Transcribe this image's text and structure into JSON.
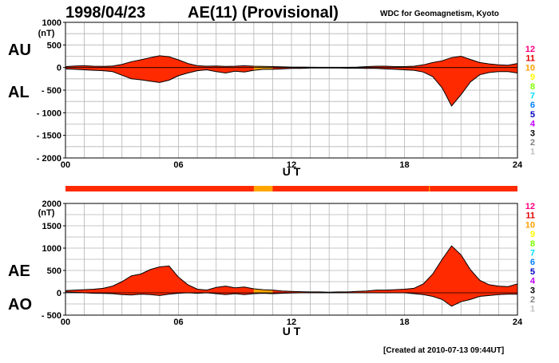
{
  "header": {
    "date": "1998/04/23",
    "title": "AE(11) (Provisional)",
    "source": "WDC for Geomagnetism, Kyoto"
  },
  "footer": {
    "created": "[Created at 2010-07-13 09:44UT]"
  },
  "colors": {
    "fill": "#ff2a00",
    "provisional": "#ffa500",
    "grid": "#b4b4b4",
    "axis": "#000000"
  },
  "station_count_scale": {
    "labels": [
      "12",
      "11",
      "10",
      "9",
      "8",
      "7",
      "6",
      "5",
      "4",
      "3",
      "2",
      "1"
    ],
    "colors": [
      "#ff0080",
      "#e00000",
      "#ffa000",
      "#ffff00",
      "#80ff00",
      "#00e0ff",
      "#0080ff",
      "#0000c0",
      "#c000ff",
      "#000000",
      "#808080",
      "#c0c0c0"
    ]
  },
  "chart_data": [
    {
      "type": "area",
      "panel": "AU / AL",
      "series": [
        {
          "name": "AU"
        },
        {
          "name": "AL"
        }
      ],
      "unit": "(nT)",
      "xlabel": "U T",
      "xlim": [
        0,
        24
      ],
      "xticks": [
        "00",
        "06",
        "12",
        "18",
        "24"
      ],
      "ylim": [
        -2000,
        1000
      ],
      "yticks": [
        "1000",
        "500",
        "0",
        "- 500",
        "- 1000",
        "- 1500",
        "- 2000"
      ],
      "ytick_values": [
        1000,
        500,
        0,
        -500,
        -1000,
        -1500,
        -2000
      ],
      "grid": true,
      "x": [
        0,
        0.5,
        1,
        1.5,
        2,
        2.5,
        3,
        3.5,
        4,
        4.5,
        5,
        5.5,
        6,
        6.5,
        7,
        7.5,
        8,
        8.5,
        9,
        9.5,
        10,
        10.5,
        11,
        11.5,
        12,
        12.5,
        13,
        13.5,
        14,
        14.5,
        15,
        15.5,
        16,
        16.5,
        17,
        17.5,
        18,
        18.5,
        19,
        19.5,
        20,
        20.5,
        21,
        21.5,
        22,
        22.5,
        23,
        23.5,
        24
      ],
      "upper": [
        20,
        35,
        40,
        30,
        25,
        35,
        70,
        130,
        170,
        220,
        260,
        240,
        170,
        90,
        40,
        30,
        35,
        25,
        30,
        40,
        30,
        25,
        20,
        15,
        10,
        10,
        8,
        5,
        5,
        5,
        5,
        10,
        20,
        30,
        30,
        20,
        20,
        30,
        60,
        110,
        150,
        220,
        250,
        180,
        110,
        80,
        60,
        50,
        90
      ],
      "lower": [
        -30,
        -40,
        -50,
        -60,
        -70,
        -90,
        -170,
        -250,
        -270,
        -300,
        -330,
        -280,
        -180,
        -120,
        -70,
        -50,
        -90,
        -120,
        -80,
        -100,
        -60,
        -40,
        -40,
        -30,
        -20,
        -20,
        -10,
        -10,
        -10,
        -10,
        -15,
        -15,
        -20,
        -20,
        -30,
        -40,
        -50,
        -60,
        -100,
        -200,
        -450,
        -850,
        -600,
        -320,
        -160,
        -110,
        -90,
        -90,
        -120
      ],
      "provisional_x": [
        10,
        11
      ]
    },
    {
      "type": "area",
      "panel": "AE / AO",
      "series": [
        {
          "name": "AE"
        },
        {
          "name": "AO"
        }
      ],
      "unit": "(nT)",
      "xlabel": "U T",
      "xlim": [
        0,
        24
      ],
      "xticks": [
        "00",
        "06",
        "12",
        "18",
        "24"
      ],
      "ylim": [
        -500,
        2000
      ],
      "yticks": [
        "2000",
        "1500",
        "1000",
        "500",
        "0",
        "- 500"
      ],
      "ytick_values": [
        2000,
        1500,
        1000,
        500,
        0,
        -500
      ],
      "grid": true,
      "x": [
        0,
        0.5,
        1,
        1.5,
        2,
        2.5,
        3,
        3.5,
        4,
        4.5,
        5,
        5.5,
        6,
        6.5,
        7,
        7.5,
        8,
        8.5,
        9,
        9.5,
        10,
        10.5,
        11,
        11.5,
        12,
        12.5,
        13,
        13.5,
        14,
        14.5,
        15,
        15.5,
        16,
        16.5,
        17,
        17.5,
        18,
        18.5,
        19,
        19.5,
        20,
        20.5,
        21,
        21.5,
        22,
        22.5,
        23,
        23.5,
        24
      ],
      "upper": [
        50,
        60,
        70,
        80,
        100,
        150,
        250,
        380,
        420,
        520,
        580,
        600,
        350,
        180,
        80,
        60,
        120,
        150,
        110,
        130,
        90,
        70,
        60,
        40,
        30,
        25,
        20,
        20,
        15,
        20,
        20,
        30,
        40,
        60,
        60,
        70,
        80,
        100,
        200,
        420,
        750,
        1050,
        850,
        520,
        280,
        180,
        150,
        140,
        200
      ],
      "lower": [
        20,
        10,
        0,
        -10,
        -15,
        -20,
        -40,
        -50,
        -30,
        -40,
        -60,
        -30,
        -10,
        0,
        -10,
        0,
        -20,
        -40,
        -20,
        -40,
        -20,
        -10,
        -20,
        -10,
        -5,
        0,
        0,
        0,
        0,
        0,
        0,
        0,
        0,
        0,
        0,
        0,
        0,
        -20,
        -40,
        -80,
        -150,
        -300,
        -200,
        -150,
        -80,
        -60,
        -40,
        -30,
        -30
      ],
      "provisional_x": [
        10,
        11
      ]
    }
  ],
  "panel_labels": {
    "upper_top": "AU",
    "upper_bottom": "AL",
    "lower_top": "AE",
    "lower_bottom": "AO"
  },
  "bar_strip": {
    "provisional_segments": [
      [
        10,
        11
      ],
      [
        19.3,
        19.35
      ]
    ]
  }
}
